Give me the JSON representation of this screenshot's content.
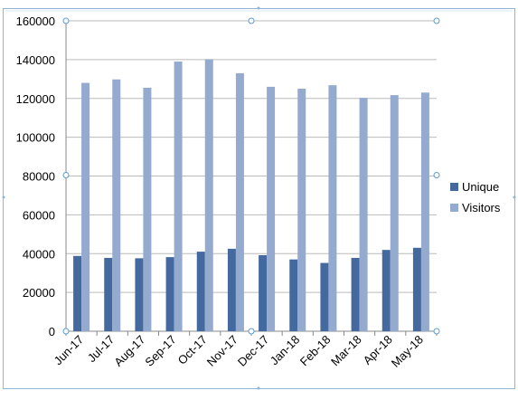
{
  "chart_data": {
    "type": "bar",
    "categories": [
      "Jun-17",
      "Jul-17",
      "Aug-17",
      "Sep-17",
      "Oct-17",
      "Nov-17",
      "Dec-17",
      "Jan-18",
      "Feb-18",
      "Mar-18",
      "Apr-18",
      "May-18"
    ],
    "series": [
      {
        "name": "Unique",
        "color": "#43699E",
        "values": [
          38800,
          37800,
          37600,
          38200,
          41000,
          42500,
          39200,
          37000,
          35200,
          37800,
          41900,
          43000
        ]
      },
      {
        "name": "Visitors",
        "color": "#94AACF",
        "values": [
          128000,
          129800,
          125500,
          139000,
          140200,
          133000,
          126000,
          125000,
          126800,
          120300,
          121700,
          123000
        ]
      }
    ],
    "ylim": [
      0,
      160000
    ],
    "yticks": [
      "0",
      "20000",
      "40000",
      "60000",
      "80000",
      "100000",
      "120000",
      "140000",
      "160000"
    ],
    "grid": true,
    "legend_position": "right",
    "title": "",
    "xlabel": "",
    "ylabel": ""
  }
}
